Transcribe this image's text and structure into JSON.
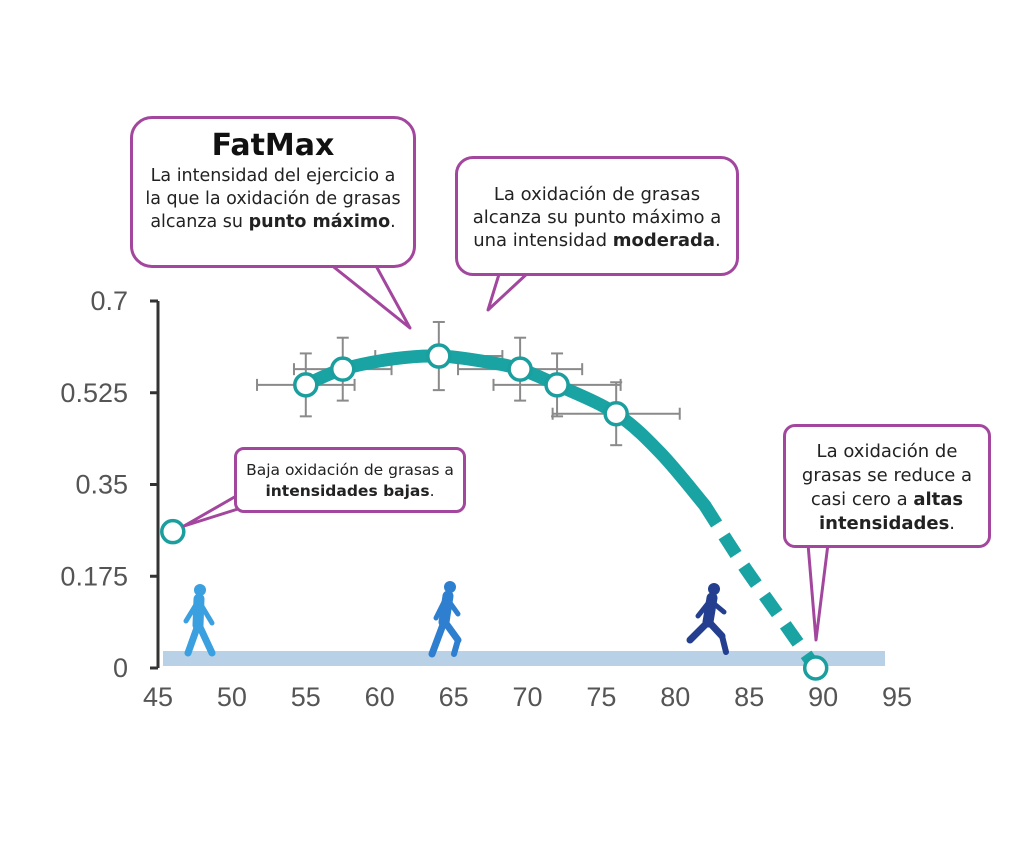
{
  "chart_data": {
    "type": "line",
    "title": "",
    "xlabel": "",
    "ylabel": "",
    "xlim": [
      45,
      95
    ],
    "ylim": [
      0,
      0.7
    ],
    "x_ticks": [
      "45",
      "50",
      "55",
      "60",
      "65",
      "70",
      "75",
      "80",
      "85",
      "90",
      "95"
    ],
    "y_ticks": [
      "0",
      "0.175",
      "0.35",
      "0.525",
      "0.7"
    ],
    "points": [
      {
        "x": 46,
        "y": 0.26
      },
      {
        "x": 55,
        "y": 0.54,
        "xerr": 3.3,
        "yerr": 0.06
      },
      {
        "x": 57.5,
        "y": 0.57,
        "xerr": 3.3,
        "yerr": 0.06
      },
      {
        "x": 64,
        "y": 0.595,
        "xerr": 4.3,
        "yerr": 0.065
      },
      {
        "x": 69.5,
        "y": 0.57,
        "xerr": 4.2,
        "yerr": 0.06
      },
      {
        "x": 72,
        "y": 0.54,
        "xerr": 4.3,
        "yerr": 0.06
      },
      {
        "x": 76,
        "y": 0.485,
        "xerr": 4.3,
        "yerr": 0.06
      },
      {
        "x": 89.5,
        "y": 0.0
      }
    ],
    "curve": {
      "solid": [
        [
          55,
          0.54
        ],
        [
          57.5,
          0.57
        ],
        [
          61,
          0.59
        ],
        [
          64,
          0.595
        ],
        [
          67,
          0.585
        ],
        [
          69.5,
          0.57
        ],
        [
          72,
          0.54
        ],
        [
          76,
          0.485
        ],
        [
          79,
          0.41
        ],
        [
          82,
          0.31
        ]
      ],
      "dashed": [
        [
          82,
          0.31
        ],
        [
          84.5,
          0.2
        ],
        [
          87,
          0.1
        ],
        [
          89.5,
          0.0
        ]
      ]
    },
    "colors": {
      "curve": "#1aa3a3",
      "marker": "#1a9e9e",
      "band": "#b8d1e6",
      "callout_border": "#a2479d",
      "walker": "#3aa0e0",
      "jogger": "#2f7fd0",
      "runner": "#243f8f"
    }
  },
  "callouts": {
    "fatmax": {
      "title": "FatMax",
      "text_before": "La intensidad del ejercicio a la que la oxidación de grasas alcanza su ",
      "bold": "punto máximo",
      "text_after": "."
    },
    "moderate": {
      "text_before": "La oxidación de grasas alcanza su punto máximo a una intensidad ",
      "bold": "moderada",
      "text_after": "."
    },
    "low": {
      "text_before": "Baja oxidación de grasas a ",
      "bold": "intensidades bajas",
      "text_after": "."
    },
    "high": {
      "text_before": "La oxidación de grasas se reduce a casi cero a ",
      "bold": "altas intensidades",
      "text_after": "."
    }
  },
  "figures": [
    "walker-icon",
    "jogger-icon",
    "runner-icon"
  ]
}
